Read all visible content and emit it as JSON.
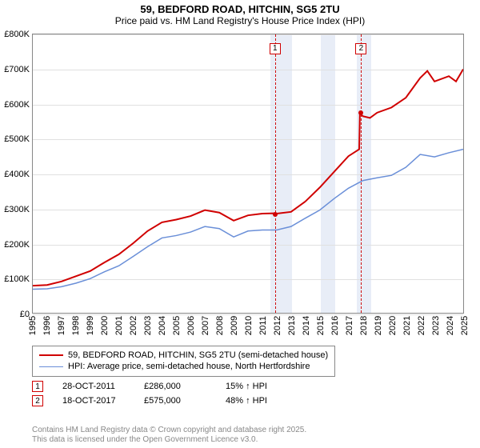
{
  "title": "59, BEDFORD ROAD, HITCHIN, SG5 2TU",
  "subtitle": "Price paid vs. HM Land Registry's House Price Index (HPI)",
  "chart": {
    "type": "line",
    "x_years": [
      1995,
      1996,
      1997,
      1998,
      1999,
      2000,
      2001,
      2002,
      2003,
      2004,
      2005,
      2006,
      2007,
      2008,
      2009,
      2010,
      2011,
      2012,
      2013,
      2014,
      2015,
      2016,
      2017,
      2018,
      2019,
      2020,
      2021,
      2022,
      2023,
      2024,
      2025
    ],
    "ylim": [
      0,
      800000
    ],
    "ytick_step": 100000,
    "ytick_labels": [
      "£0",
      "£100K",
      "£200K",
      "£300K",
      "£400K",
      "£500K",
      "£600K",
      "£700K",
      "£800K"
    ],
    "grid_color": "#e0e0e0",
    "border_color": "#888888",
    "background_color": "#ffffff",
    "shaded_bands": [
      {
        "from": 2011.5,
        "to": 2013.0,
        "color": "#e8edf7"
      },
      {
        "from": 2015.0,
        "to": 2016.0,
        "color": "#e8edf7"
      },
      {
        "from": 2017.5,
        "to": 2018.5,
        "color": "#e8edf7"
      }
    ],
    "vlines": [
      {
        "x": 2011.82,
        "color": "#d00000",
        "anno": "1",
        "anno_y": 760000
      },
      {
        "x": 2017.8,
        "color": "#d00000",
        "anno": "2",
        "anno_y": 760000
      }
    ],
    "series": [
      {
        "name": "price_paid",
        "label": "59, BEDFORD ROAD, HITCHIN, SG5 2TU (semi-detached house)",
        "color": "#d00000",
        "width": 2,
        "xy": [
          [
            1995,
            78000
          ],
          [
            1996,
            80000
          ],
          [
            1997,
            90000
          ],
          [
            1998,
            105000
          ],
          [
            1999,
            120000
          ],
          [
            2000,
            145000
          ],
          [
            2001,
            168000
          ],
          [
            2002,
            200000
          ],
          [
            2003,
            235000
          ],
          [
            2004,
            260000
          ],
          [
            2005,
            268000
          ],
          [
            2006,
            278000
          ],
          [
            2007,
            295000
          ],
          [
            2008,
            288000
          ],
          [
            2009,
            265000
          ],
          [
            2010,
            280000
          ],
          [
            2011,
            285000
          ],
          [
            2011.82,
            286000
          ],
          [
            2012,
            285000
          ],
          [
            2013,
            290000
          ],
          [
            2014,
            320000
          ],
          [
            2015,
            360000
          ],
          [
            2016,
            405000
          ],
          [
            2017,
            450000
          ],
          [
            2017.75,
            470000
          ],
          [
            2017.8,
            575000
          ],
          [
            2018,
            565000
          ],
          [
            2018.5,
            560000
          ],
          [
            2019,
            575000
          ],
          [
            2020,
            590000
          ],
          [
            2021,
            618000
          ],
          [
            2022,
            675000
          ],
          [
            2022.5,
            695000
          ],
          [
            2023,
            665000
          ],
          [
            2024,
            680000
          ],
          [
            2024.5,
            665000
          ],
          [
            2025,
            700000
          ]
        ]
      },
      {
        "name": "hpi",
        "label": "HPI: Average price, semi-detached house, North Hertfordshire",
        "color": "#6a8fd8",
        "width": 1.5,
        "xy": [
          [
            1995,
            68000
          ],
          [
            1996,
            69000
          ],
          [
            1997,
            75000
          ],
          [
            1998,
            85000
          ],
          [
            1999,
            98000
          ],
          [
            2000,
            118000
          ],
          [
            2001,
            135000
          ],
          [
            2002,
            162000
          ],
          [
            2003,
            190000
          ],
          [
            2004,
            215000
          ],
          [
            2005,
            222000
          ],
          [
            2006,
            232000
          ],
          [
            2007,
            248000
          ],
          [
            2008,
            242000
          ],
          [
            2009,
            218000
          ],
          [
            2010,
            235000
          ],
          [
            2011,
            238000
          ],
          [
            2012,
            238000
          ],
          [
            2013,
            248000
          ],
          [
            2014,
            272000
          ],
          [
            2015,
            295000
          ],
          [
            2016,
            328000
          ],
          [
            2017,
            358000
          ],
          [
            2018,
            380000
          ],
          [
            2019,
            388000
          ],
          [
            2020,
            395000
          ],
          [
            2021,
            418000
          ],
          [
            2022,
            455000
          ],
          [
            2023,
            448000
          ],
          [
            2024,
            460000
          ],
          [
            2025,
            470000
          ]
        ]
      }
    ],
    "markers": [
      {
        "x": 2011.82,
        "y": 286000,
        "color": "#d00000"
      },
      {
        "x": 2017.8,
        "y": 575000,
        "color": "#d00000"
      }
    ]
  },
  "legend": {
    "items": [
      {
        "color": "#d00000",
        "width": 2,
        "label": "59, BEDFORD ROAD, HITCHIN, SG5 2TU (semi-detached house)"
      },
      {
        "color": "#6a8fd8",
        "width": 1.5,
        "label": "HPI: Average price, semi-detached house, North Hertfordshire"
      }
    ]
  },
  "transactions": [
    {
      "num": "1",
      "date": "28-OCT-2011",
      "price": "£286,000",
      "delta": "15% ↑ HPI"
    },
    {
      "num": "2",
      "date": "18-OCT-2017",
      "price": "£575,000",
      "delta": "48% ↑ HPI"
    }
  ],
  "footer": {
    "l1": "Contains HM Land Registry data © Crown copyright and database right 2025.",
    "l2": "This data is licensed under the Open Government Licence v3.0."
  }
}
